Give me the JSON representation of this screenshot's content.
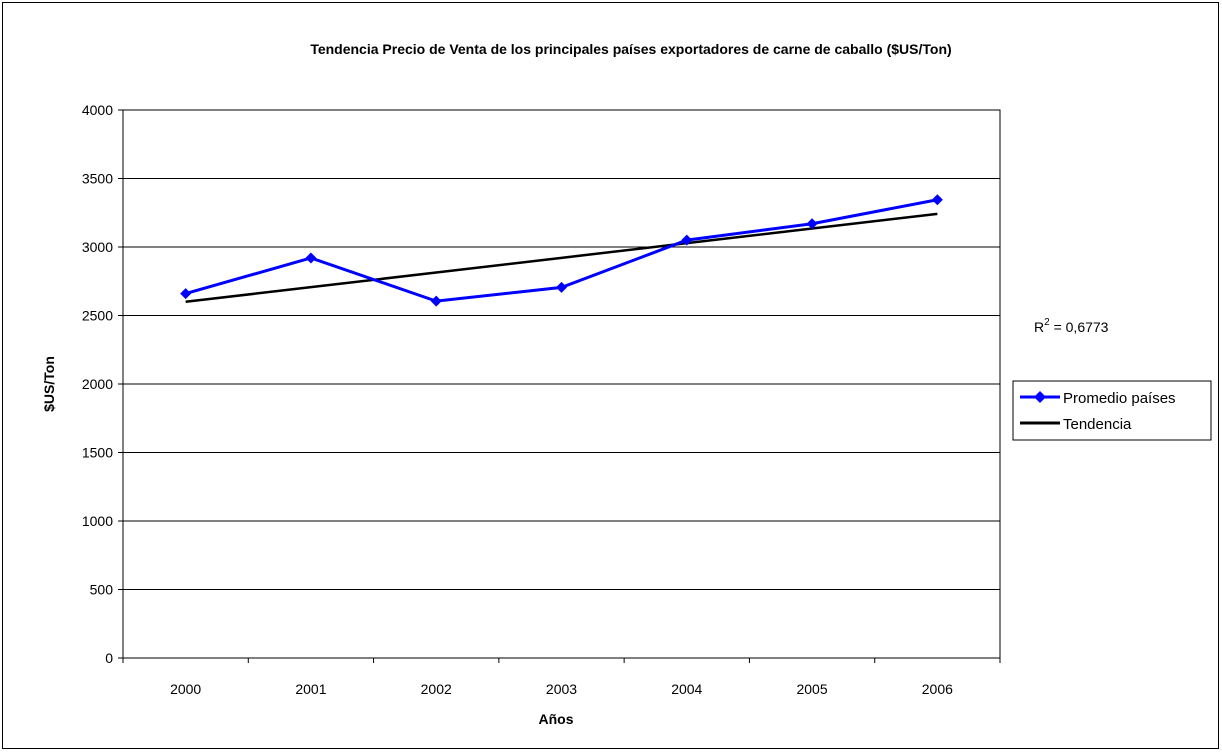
{
  "chart_data": {
    "type": "line",
    "title": "Tendencia Precio de Venta de los principales países exportadores de carne de caballo ($US/Ton)",
    "xlabel": "Años",
    "ylabel": "$US/Ton",
    "categories": [
      "2000",
      "2001",
      "2002",
      "2003",
      "2004",
      "2005",
      "2006"
    ],
    "y_ticks": [
      "0",
      "500",
      "1000",
      "1500",
      "2000",
      "2500",
      "3000",
      "3500",
      "4000"
    ],
    "ylim": [
      0,
      4000
    ],
    "grid": true,
    "legend_position": "right",
    "series": [
      {
        "name": "Promedio países",
        "values": [
          2660,
          2920,
          2605,
          2705,
          3050,
          3170,
          3345
        ],
        "color": "#0000ff",
        "marker": "diamond"
      },
      {
        "name": "Tendencia",
        "values": [
          2600,
          2707,
          2814,
          2921,
          3028,
          3135,
          3242
        ],
        "color": "#000000",
        "marker": "none"
      }
    ],
    "annotation": {
      "r_label": "R",
      "r_sup": "2",
      "r_value": " = 0,6773"
    }
  }
}
